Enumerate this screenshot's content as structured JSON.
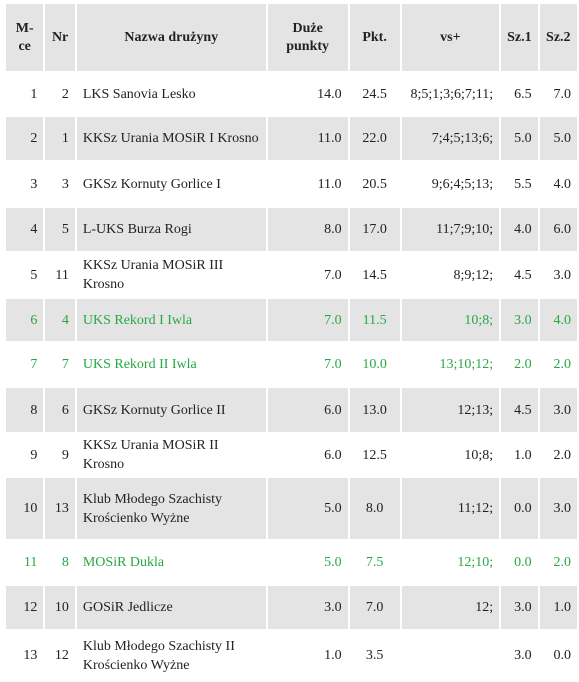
{
  "headers": {
    "mce": "M-ce",
    "nr": "Nr",
    "name": "Nazwa drużyny",
    "duze": "Duże punkty",
    "pkt": "Pkt.",
    "vs": "vs+",
    "sz1": "Sz.1",
    "sz2": "Sz.2"
  },
  "rows": [
    {
      "mce": "1",
      "nr": "2",
      "name": "LKS Sanovia Lesko",
      "name2": "",
      "duze": "14.0",
      "pkt": "24.5",
      "vs": "8;5;1;3;6;7;11;",
      "sz1": "6.5",
      "sz2": "7.0"
    },
    {
      "mce": "2",
      "nr": "1",
      "name": "KKSz Urania MOSiR I Krosno",
      "name2": "",
      "duze": "11.0",
      "pkt": "22.0",
      "vs": "7;4;5;13;6;",
      "sz1": "5.0",
      "sz2": "5.0"
    },
    {
      "mce": "3",
      "nr": "3",
      "name": "GKSz Kornuty Gorlice I",
      "name2": "",
      "duze": "11.0",
      "pkt": "20.5",
      "vs": "9;6;4;5;13;",
      "sz1": "5.5",
      "sz2": "4.0"
    },
    {
      "mce": "4",
      "nr": "5",
      "name": "L-UKS Burza Rogi",
      "name2": "",
      "duze": "8.0",
      "pkt": "17.0",
      "vs": "11;7;9;10;",
      "sz1": "4.0",
      "sz2": "6.0"
    },
    {
      "mce": "5",
      "nr": "11",
      "name": "KKSz Urania MOSiR III Krosno",
      "name2": "",
      "duze": "7.0",
      "pkt": "14.5",
      "vs": "8;9;12;",
      "sz1": "4.5",
      "sz2": "3.0"
    },
    {
      "mce": "6",
      "nr": "4",
      "name": "UKS Rekord I Iwla",
      "name2": "",
      "duze": "7.0",
      "pkt": "11.5",
      "vs": "10;8;",
      "sz1": "3.0",
      "sz2": "4.0"
    },
    {
      "mce": "7",
      "nr": "7",
      "name": "UKS Rekord II Iwla",
      "name2": "",
      "duze": "7.0",
      "pkt": "10.0",
      "vs": "13;10;12;",
      "sz1": "2.0",
      "sz2": "2.0"
    },
    {
      "mce": "8",
      "nr": "6",
      "name": "GKSz Kornuty Gorlice II",
      "name2": "",
      "duze": "6.0",
      "pkt": "13.0",
      "vs": "12;13;",
      "sz1": "4.5",
      "sz2": "3.0"
    },
    {
      "mce": "9",
      "nr": "9",
      "name": "KKSz Urania MOSiR II Krosno",
      "name2": "",
      "duze": "6.0",
      "pkt": "12.5",
      "vs": "10;8;",
      "sz1": "1.0",
      "sz2": "2.0"
    },
    {
      "mce": "10",
      "nr": "13",
      "name": "Klub Młodego Szachisty",
      "name2": "Krościenko Wyżne",
      "duze": "5.0",
      "pkt": "8.0",
      "vs": "11;12;",
      "sz1": "0.0",
      "sz2": "3.0"
    },
    {
      "mce": "11",
      "nr": "8",
      "name": "MOSiR Dukla",
      "name2": "",
      "duze": "5.0",
      "pkt": "7.5",
      "vs": "12;10;",
      "sz1": "0.0",
      "sz2": "2.0"
    },
    {
      "mce": "12",
      "nr": "10",
      "name": "GOSiR Jedlicze",
      "name2": "",
      "duze": "3.0",
      "pkt": "7.0",
      "vs": "12;",
      "sz1": "3.0",
      "sz2": "1.0"
    },
    {
      "mce": "13",
      "nr": "12",
      "name": "Klub Młodego Szachisty II",
      "name2": "Krościenko Wyżne",
      "duze": "1.0",
      "pkt": "3.5",
      "vs": "",
      "sz1": "3.0",
      "sz2": "0.0"
    }
  ],
  "colors": {
    "highlight_text": "#27a844",
    "header_bg": "#e4e4e4",
    "stripe_bg": "#e4e4e4"
  }
}
